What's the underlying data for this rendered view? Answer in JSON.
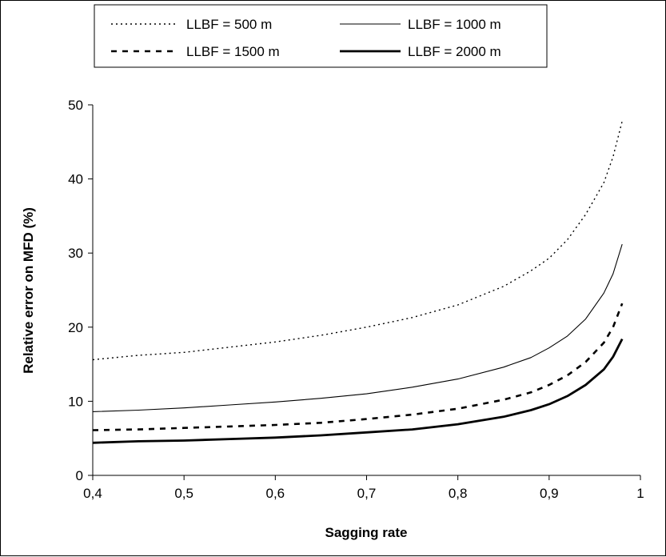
{
  "chart_data": {
    "type": "line",
    "title": "",
    "xlabel": "Sagging rate",
    "ylabel": "Relative error on MFD (%)",
    "xlim": [
      0.4,
      1.0
    ],
    "ylim": [
      0,
      50
    ],
    "x_ticks": [
      0.4,
      0.5,
      0.6,
      0.7,
      0.8,
      0.9,
      1.0
    ],
    "x_tick_labels": [
      "0,4",
      "0,5",
      "0,6",
      "0,7",
      "0,8",
      "0,9",
      "1"
    ],
    "y_ticks": [
      0,
      10,
      20,
      30,
      40,
      50
    ],
    "y_tick_labels": [
      "0",
      "10",
      "20",
      "30",
      "40",
      "50"
    ],
    "grid": false,
    "legend_position": "top",
    "x": [
      0.4,
      0.45,
      0.5,
      0.55,
      0.6,
      0.65,
      0.7,
      0.75,
      0.8,
      0.85,
      0.88,
      0.9,
      0.92,
      0.94,
      0.96,
      0.97,
      0.98
    ],
    "series": [
      {
        "name": "LLBF = 500 m",
        "style": "dotted",
        "values": [
          15.6,
          16.2,
          16.6,
          17.3,
          18.0,
          18.9,
          20.0,
          21.3,
          23.0,
          25.5,
          27.6,
          29.3,
          31.8,
          35.2,
          39.5,
          43.0,
          47.8
        ]
      },
      {
        "name": "LLBF = 1000 m",
        "style": "thin-solid",
        "values": [
          8.6,
          8.8,
          9.1,
          9.5,
          9.9,
          10.4,
          11.0,
          11.9,
          13.0,
          14.6,
          15.9,
          17.2,
          18.8,
          21.1,
          24.6,
          27.2,
          31.2
        ]
      },
      {
        "name": "LLBF = 1500 m",
        "style": "dashed",
        "values": [
          6.1,
          6.2,
          6.4,
          6.6,
          6.8,
          7.1,
          7.6,
          8.2,
          9.0,
          10.2,
          11.2,
          12.2,
          13.5,
          15.3,
          17.9,
          20.0,
          23.2
        ]
      },
      {
        "name": "LLBF = 2000 m",
        "style": "thick-solid",
        "values": [
          4.4,
          4.6,
          4.7,
          4.9,
          5.1,
          5.4,
          5.8,
          6.2,
          6.9,
          7.9,
          8.8,
          9.6,
          10.7,
          12.2,
          14.3,
          16.0,
          18.4
        ]
      }
    ]
  }
}
